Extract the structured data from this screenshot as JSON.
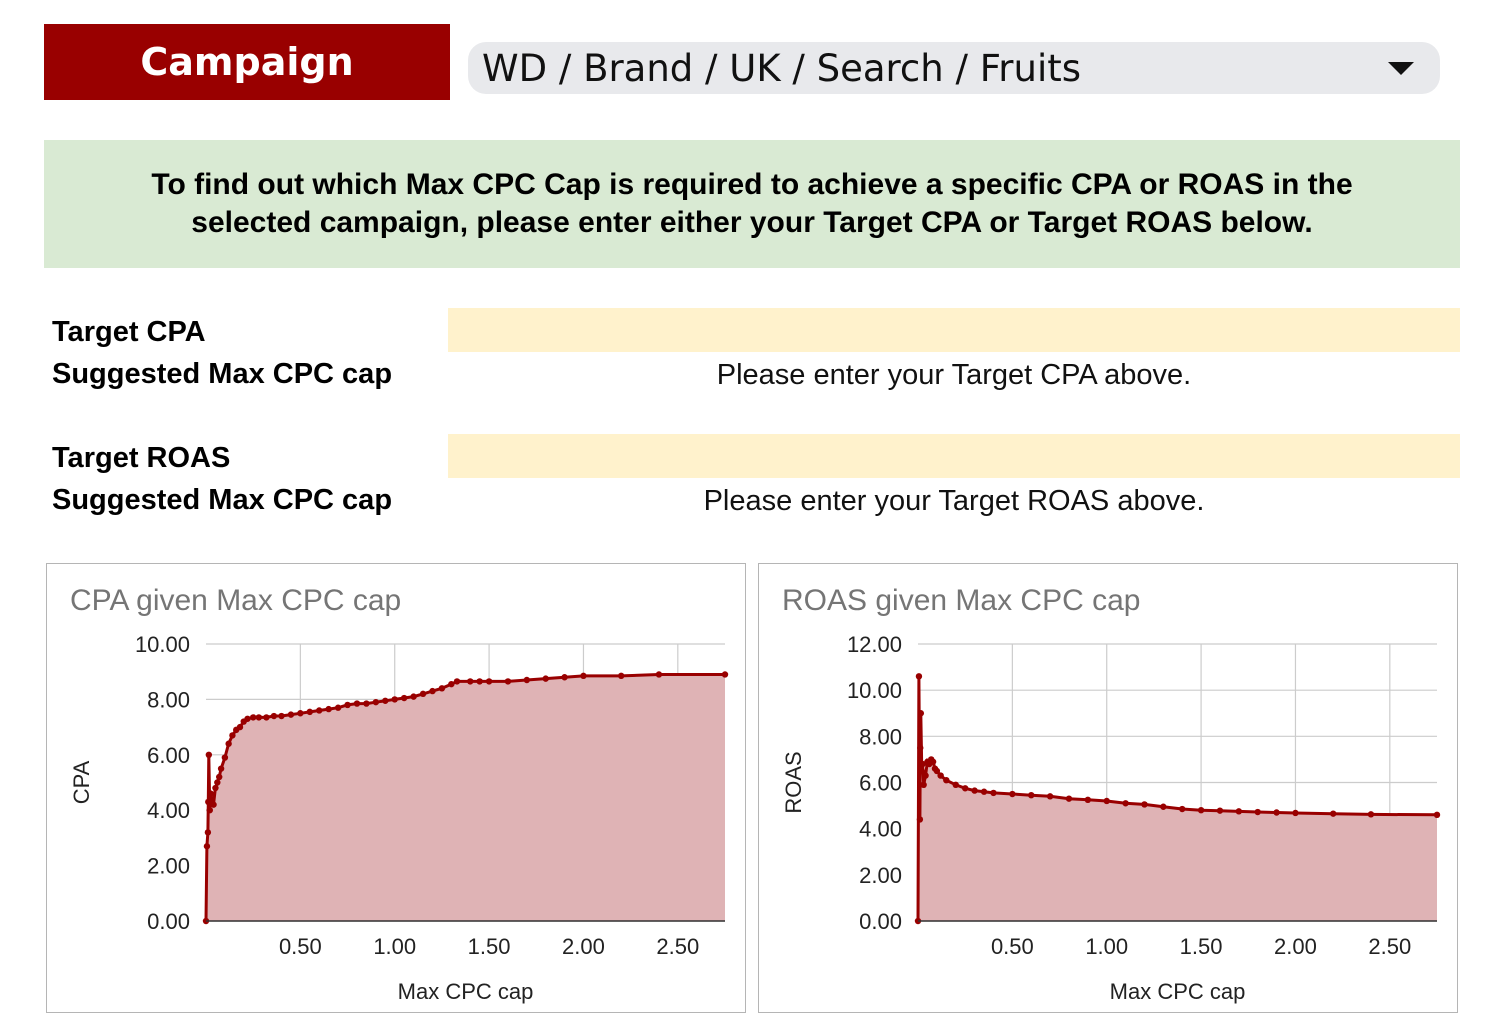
{
  "header": {
    "campaign_label": "Campaign",
    "campaign_selected": "WD / Brand / UK / Search / Fruits",
    "dropdown_icon": "caret-down-icon"
  },
  "banner": {
    "text": "To find out which Max CPC Cap is required to achieve a specific CPA or ROAS in the selected campaign, please enter either your Target CPA or Target ROAS below."
  },
  "form": {
    "target_cpa_label": "Target CPA",
    "target_cpa_value": "",
    "suggested_cpa_label": "Suggested Max CPC cap",
    "suggested_cpa_message": "Please enter your Target CPA above.",
    "target_roas_label": "Target ROAS",
    "target_roas_value": "",
    "suggested_roas_label": "Suggested Max CPC cap",
    "suggested_roas_message": "Please enter your Target ROAS above."
  },
  "colors": {
    "brand": "#990000",
    "banner_bg": "#d9ead3",
    "input_bg": "#fff2cc",
    "series_line": "#990000",
    "series_fill": "#dfb3b5"
  },
  "chart_data": [
    {
      "type": "area",
      "title": "CPA given Max CPC cap",
      "xlabel": "Max CPC cap",
      "ylabel": "CPA",
      "xlim": [
        0,
        2.75
      ],
      "ylim": [
        0,
        10
      ],
      "xticks": [
        "0.50",
        "1.00",
        "1.50",
        "2.00",
        "2.50"
      ],
      "yticks": [
        "0.00",
        "2.00",
        "4.00",
        "6.00",
        "8.00",
        "10.00"
      ],
      "grid": true,
      "x": [
        0.0,
        0.005,
        0.01,
        0.012,
        0.015,
        0.02,
        0.025,
        0.03,
        0.04,
        0.05,
        0.06,
        0.07,
        0.08,
        0.1,
        0.12,
        0.14,
        0.16,
        0.18,
        0.2,
        0.22,
        0.25,
        0.28,
        0.32,
        0.36,
        0.4,
        0.45,
        0.5,
        0.55,
        0.6,
        0.65,
        0.7,
        0.75,
        0.8,
        0.85,
        0.9,
        0.95,
        1.0,
        1.05,
        1.1,
        1.15,
        1.2,
        1.25,
        1.3,
        1.33,
        1.4,
        1.45,
        1.5,
        1.6,
        1.7,
        1.8,
        1.9,
        2.0,
        2.2,
        2.4,
        2.75
      ],
      "y": [
        0.0,
        2.7,
        3.2,
        4.3,
        6.0,
        4.0,
        4.6,
        4.4,
        4.2,
        4.8,
        5.0,
        5.2,
        5.5,
        5.9,
        6.4,
        6.7,
        6.9,
        7.0,
        7.2,
        7.3,
        7.35,
        7.35,
        7.35,
        7.4,
        7.4,
        7.45,
        7.5,
        7.55,
        7.6,
        7.65,
        7.7,
        7.8,
        7.85,
        7.85,
        7.9,
        7.95,
        8.0,
        8.05,
        8.1,
        8.2,
        8.3,
        8.4,
        8.55,
        8.65,
        8.65,
        8.65,
        8.65,
        8.65,
        8.7,
        8.75,
        8.8,
        8.85,
        8.85,
        8.9,
        8.9
      ]
    },
    {
      "type": "area",
      "title": "ROAS given Max CPC cap",
      "xlabel": "Max CPC cap",
      "ylabel": "ROAS",
      "xlim": [
        0,
        2.75
      ],
      "ylim": [
        0,
        12
      ],
      "xticks": [
        "0.50",
        "1.00",
        "1.50",
        "2.00",
        "2.50"
      ],
      "yticks": [
        "0.00",
        "2.00",
        "4.00",
        "6.00",
        "8.00",
        "10.00",
        "12.00"
      ],
      "grid": true,
      "x": [
        0.0,
        0.005,
        0.01,
        0.012,
        0.015,
        0.02,
        0.025,
        0.03,
        0.04,
        0.05,
        0.06,
        0.07,
        0.08,
        0.09,
        0.1,
        0.12,
        0.15,
        0.2,
        0.25,
        0.3,
        0.35,
        0.4,
        0.5,
        0.6,
        0.7,
        0.8,
        0.9,
        1.0,
        1.1,
        1.2,
        1.3,
        1.4,
        1.5,
        1.6,
        1.7,
        1.8,
        1.9,
        2.0,
        2.2,
        2.4,
        2.75
      ],
      "y": [
        0.0,
        10.6,
        4.4,
        7.5,
        9.0,
        6.5,
        6.8,
        5.9,
        6.3,
        6.9,
        6.8,
        7.0,
        6.9,
        6.6,
        6.5,
        6.3,
        6.1,
        5.9,
        5.75,
        5.65,
        5.6,
        5.55,
        5.5,
        5.45,
        5.4,
        5.3,
        5.25,
        5.2,
        5.1,
        5.05,
        4.95,
        4.85,
        4.8,
        4.78,
        4.75,
        4.72,
        4.7,
        4.68,
        4.65,
        4.62,
        4.6
      ]
    }
  ]
}
